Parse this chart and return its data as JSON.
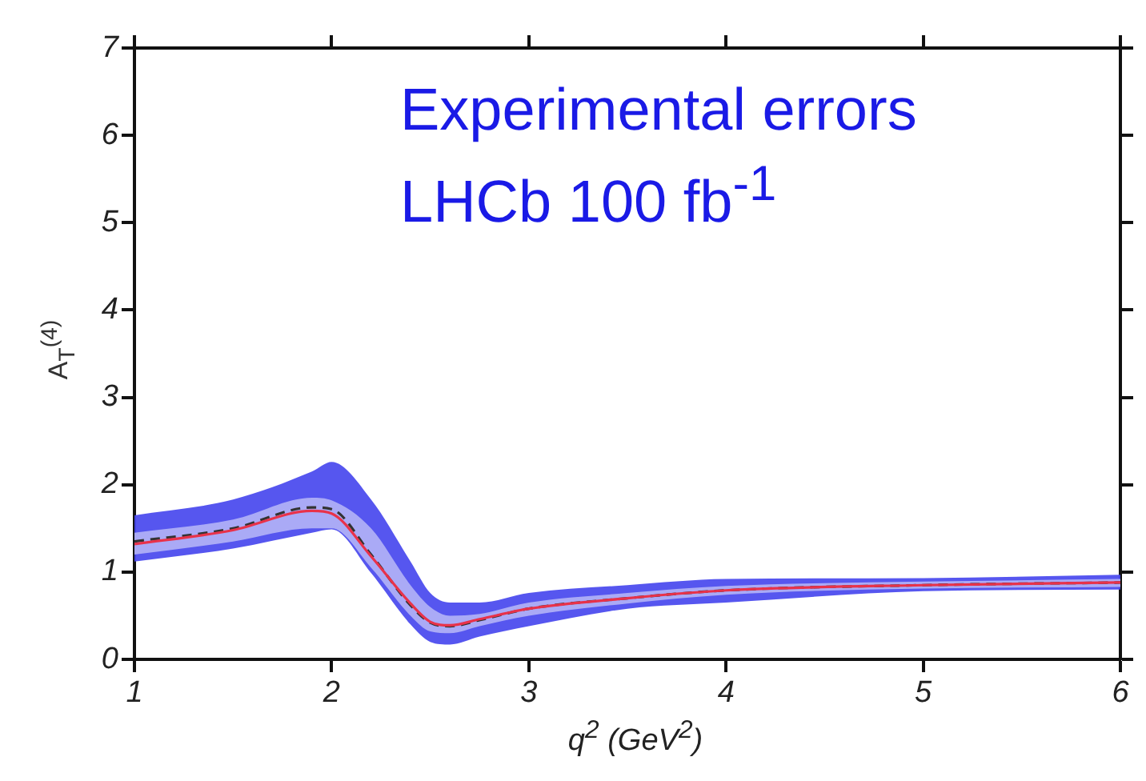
{
  "chart_data": {
    "type": "line",
    "xlabel": "q$^{2}$ (GeV$^{2}$)",
    "ylabel": "A$_{T}$$^{(4)}$",
    "x": [
      1,
      1.5,
      1.9,
      2,
      2.2,
      2.4,
      2.5,
      2.6,
      2.75,
      3,
      3.5,
      4,
      5,
      6
    ],
    "series": [
      {
        "color": "#333333",
        "line_style": "dashed",
        "values": [
          1.35,
          1.5,
          1.74,
          1.72,
          1.2,
          0.62,
          0.42,
          0.38,
          0.45,
          0.58,
          0.7,
          0.79,
          0.85,
          0.88
        ],
        "lower": [
          1.12,
          1.27,
          1.45,
          1.49,
          0.99,
          0.4,
          0.2,
          0.17,
          0.26,
          0.38,
          0.58,
          0.65,
          0.78,
          0.8
        ],
        "upper": [
          1.65,
          1.83,
          2.15,
          2.26,
          1.83,
          1.12,
          0.76,
          0.65,
          0.65,
          0.76,
          0.85,
          0.92,
          0.93,
          0.97
        ]
      },
      {
        "color": "#e8324a",
        "line_style": "solid",
        "values": [
          1.32,
          1.48,
          1.7,
          1.67,
          1.18,
          0.64,
          0.43,
          0.39,
          0.46,
          0.58,
          0.7,
          0.79,
          0.85,
          0.88
        ],
        "lower": [
          1.2,
          1.35,
          1.5,
          1.5,
          1.05,
          0.5,
          0.32,
          0.3,
          0.38,
          0.5,
          0.64,
          0.74,
          0.81,
          0.83
        ],
        "upper": [
          1.45,
          1.6,
          1.85,
          1.82,
          1.5,
          0.85,
          0.6,
          0.5,
          0.52,
          0.65,
          0.76,
          0.84,
          0.89,
          0.92
        ]
      }
    ],
    "xlim": [
      1,
      6
    ],
    "xticks": [
      1,
      2,
      3,
      4,
      5,
      6
    ],
    "ylim": [
      0,
      7
    ],
    "yticks": [
      0,
      1,
      2,
      3,
      4,
      5,
      6,
      7
    ],
    "grid": false,
    "legend": false,
    "marker": "none",
    "annotations": [
      "Experimental errors",
      "LHCb 100 fb$^{-1}$"
    ]
  }
}
